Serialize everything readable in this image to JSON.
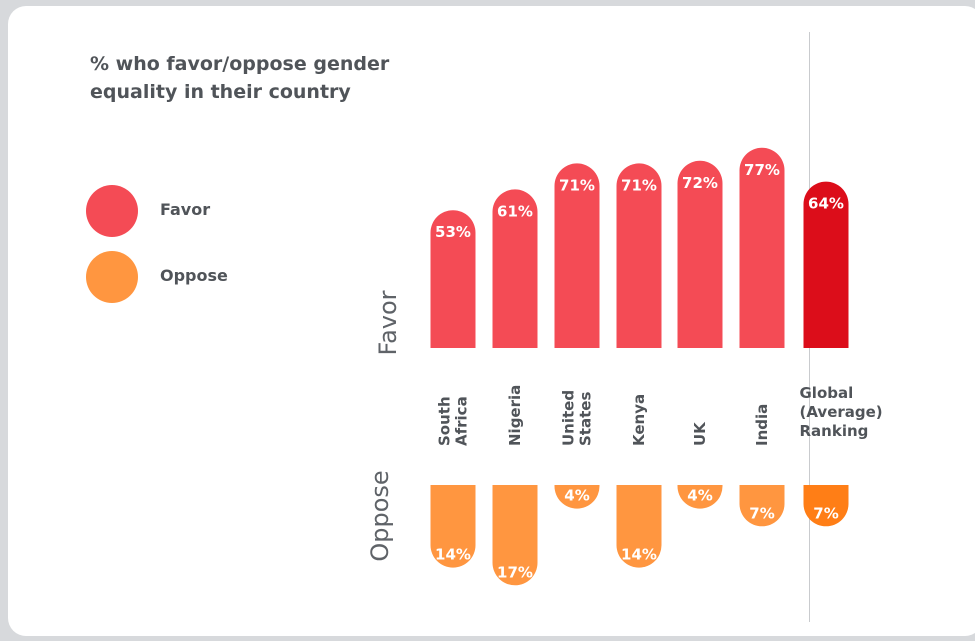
{
  "title": "% who favor/oppose gender equality in their country",
  "legend": {
    "favor_label": "Favor",
    "oppose_label": "Oppose"
  },
  "axis_words": {
    "favor": "Favor",
    "oppose": "Oppose"
  },
  "colors": {
    "favor": "#f44b55",
    "favor_global": "#dc0d1a",
    "oppose": "#ff9640",
    "oppose_global": "#ff7e16",
    "legend_favor": "#f44b55",
    "legend_oppose": "#ff9640"
  },
  "chart_data": {
    "type": "bar",
    "title": "% who favor/oppose gender equality in their country",
    "categories": [
      [
        "South",
        "Africa"
      ],
      [
        "Nigeria"
      ],
      [
        "United",
        "States"
      ],
      [
        "Kenya"
      ],
      [
        "UK"
      ],
      [
        "India"
      ],
      [
        "Global",
        "(Average)",
        "Ranking"
      ]
    ],
    "series": [
      {
        "name": "Favor",
        "values": [
          53,
          61,
          71,
          71,
          72,
          77,
          64
        ],
        "labels": [
          "53%",
          "61%",
          "71%",
          "71%",
          "72%",
          "77%",
          "64%"
        ]
      },
      {
        "name": "Oppose",
        "values": [
          14,
          17,
          4,
          14,
          4,
          7,
          7
        ],
        "labels": [
          "14%",
          "17%",
          "4%",
          "14%",
          "4%",
          "7%",
          "7%"
        ]
      }
    ],
    "ylim": [
      0,
      100
    ],
    "grid": false,
    "legend_position": "left"
  }
}
